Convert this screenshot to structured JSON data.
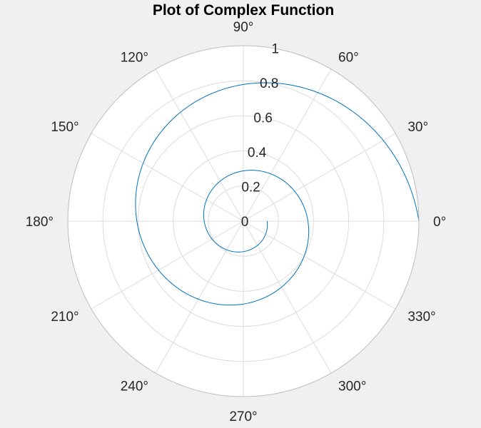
{
  "chart_data": {
    "type": "polar-line",
    "title": "Plot of Complex Function",
    "rlim": [
      0,
      1
    ],
    "r_ticks": [
      0,
      0.2,
      0.4,
      0.6,
      0.8,
      1
    ],
    "r_tick_labels": [
      "0",
      "0.2",
      "0.4",
      "0.6",
      "0.8",
      "1"
    ],
    "theta_ticks_deg": [
      0,
      30,
      60,
      90,
      120,
      150,
      180,
      210,
      240,
      270,
      300,
      330
    ],
    "theta_tick_labels": [
      "0°",
      "30°",
      "60°",
      "90°",
      "120°",
      "150°",
      "180°",
      "210°",
      "240°",
      "270°",
      "300°",
      "330°"
    ],
    "grid": true,
    "series": [
      {
        "color": "#0072bd",
        "function": "r = exp(-theta/(2*pi))",
        "theta_range_rad": [
          0,
          12.566
        ],
        "theta_deg": [
          0,
          30,
          60,
          90,
          120,
          150,
          180,
          210,
          240,
          270,
          300,
          330,
          360,
          390,
          420,
          450,
          480,
          510,
          540,
          570,
          600,
          630,
          660,
          690,
          720
        ],
        "r": [
          1.0,
          0.92,
          0.846,
          0.779,
          0.717,
          0.659,
          0.607,
          0.558,
          0.513,
          0.472,
          0.435,
          0.4,
          0.368,
          0.338,
          0.311,
          0.287,
          0.264,
          0.242,
          0.223,
          0.205,
          0.189,
          0.174,
          0.16,
          0.147,
          0.135
        ]
      }
    ]
  },
  "colors": {
    "figure_background": "#f0f0f0",
    "axes_background": "#ffffff",
    "grid": "#dcdcdc",
    "outer_ring": "#bdbdbd",
    "line": "#0072bd",
    "text": "#262626"
  }
}
